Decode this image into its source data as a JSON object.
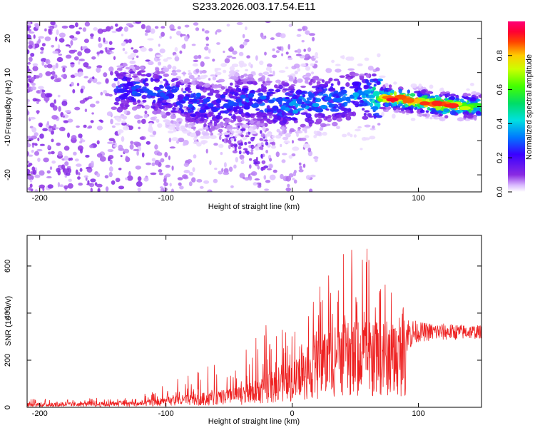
{
  "title": "S233.2026.003.17.54.E11",
  "chart_data": [
    {
      "type": "heatmap",
      "name": "spectrogram",
      "xlabel": "Height of straight line (km)",
      "ylabel": "Frequency (Hz)",
      "xlim": [
        -210,
        150
      ],
      "ylim": [
        -25,
        25
      ],
      "xticks": [
        -200,
        -100,
        0,
        100
      ],
      "yticks": [
        -20,
        -10,
        0,
        10,
        20
      ],
      "colorbar": {
        "label": "Normalized spectral amplitude",
        "range": [
          0,
          1
        ],
        "ticks": [
          "0.0",
          "0.2",
          "0.4",
          "0.6",
          "0.8"
        ],
        "tick_values": [
          0.0,
          0.2,
          0.4,
          0.6,
          0.8
        ]
      },
      "ridge": {
        "description_values_x_km": [
          -140,
          -120,
          -100,
          -80,
          -60,
          -40,
          -20,
          0,
          20,
          40,
          60,
          80,
          100,
          120,
          150
        ],
        "frequency_hz": [
          5.5,
          5,
          4,
          1,
          0,
          2,
          1,
          0.5,
          1.5,
          2.5,
          3,
          2.5,
          1.5,
          0.5,
          0
        ],
        "peak_amplitude": [
          0.25,
          0.3,
          0.3,
          0.3,
          0.25,
          0.3,
          0.3,
          0.35,
          0.35,
          0.35,
          0.4,
          0.95,
          0.85,
          1.0,
          0.6
        ]
      }
    },
    {
      "type": "line",
      "name": "snr",
      "xlabel": "Height of straight line (km)",
      "ylabel": "SNR (10 * v/v)",
      "xlim": [
        -210,
        150
      ],
      "ylim": [
        0,
        730
      ],
      "xticks": [
        -200,
        -100,
        0,
        100
      ],
      "yticks": [
        0,
        200,
        400,
        600
      ],
      "color": "#ee2222",
      "envelope": {
        "x_km": [
          -210,
          -160,
          -120,
          -100,
          -80,
          -60,
          -40,
          -20,
          0,
          20,
          40,
          60,
          80,
          100,
          150
        ],
        "mean": [
          15,
          18,
          22,
          35,
          45,
          55,
          70,
          110,
          150,
          240,
          290,
          290,
          300,
          320,
          320
        ],
        "max": [
          35,
          40,
          50,
          110,
          140,
          200,
          220,
          360,
          310,
          500,
          690,
          730,
          480,
          380,
          360
        ]
      }
    }
  ]
}
